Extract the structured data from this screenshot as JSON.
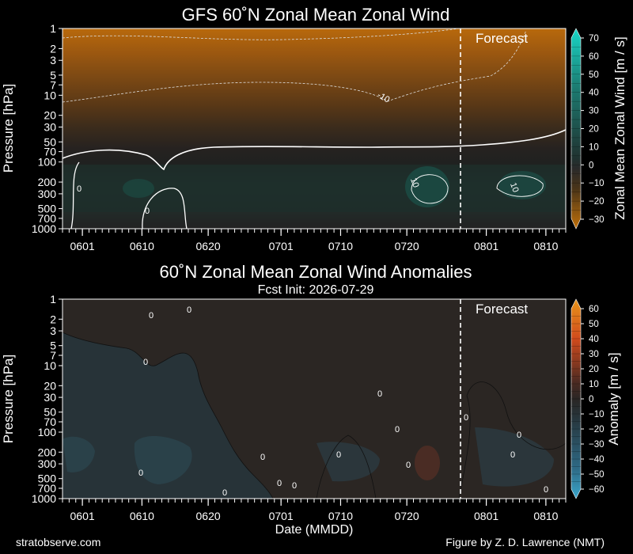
{
  "footer": {
    "left": "stratobserve.com",
    "right": "Figure by Z. D. Lawrence (NMT)"
  },
  "chart_data": [
    {
      "type": "heatmap",
      "title": "GFS 60˚N Zonal Mean Zonal Wind",
      "subtitle": "",
      "xlabel": "",
      "ylabel": "Pressure [hPa]",
      "x_ticks": [
        "0601",
        "0610",
        "0620",
        "0701",
        "0710",
        "0720",
        "0801",
        "0810"
      ],
      "x_range": [
        "0529",
        "0813"
      ],
      "y_ticks": [
        "1",
        "2",
        "3",
        "5",
        "7",
        "10",
        "20",
        "30",
        "50",
        "70",
        "100",
        "200",
        "300",
        "500",
        "700",
        "1000"
      ],
      "y_scale": "log",
      "ylim": [
        1000,
        1
      ],
      "forecast_label": "Forecast",
      "forecast_start": "0729",
      "colorbar": {
        "label": "Zonal Mean Zonal Wind [m / s]",
        "ticks": [
          70,
          60,
          50,
          40,
          30,
          20,
          10,
          0,
          -10,
          -20,
          -30
        ],
        "range": [
          -30,
          70
        ],
        "colors": {
          "neg_deep": "#b86a0c",
          "neg_light": "#5a3a14",
          "zero": "#202020",
          "pos_light": "#1e4a44",
          "pos_deep": "#18d6c6"
        }
      },
      "contour_labels": [
        "0",
        "0",
        "10",
        "10",
        "-10"
      ],
      "grid": false,
      "legend": "colorbar-right"
    },
    {
      "type": "heatmap",
      "title": "60˚N Zonal Mean Zonal Wind Anomalies",
      "subtitle": "Fcst Init: 2026-07-29",
      "xlabel": "Date (MMDD)",
      "ylabel": "Pressure [hPa]",
      "x_ticks": [
        "0601",
        "0610",
        "0620",
        "0701",
        "0710",
        "0720",
        "0801",
        "0810"
      ],
      "x_range": [
        "0529",
        "0813"
      ],
      "y_ticks": [
        "1",
        "2",
        "3",
        "5",
        "7",
        "10",
        "20",
        "30",
        "50",
        "70",
        "100",
        "200",
        "300",
        "500",
        "700",
        "1000"
      ],
      "y_scale": "log",
      "ylim": [
        1000,
        1
      ],
      "forecast_label": "Forecast",
      "forecast_start": "0729",
      "colorbar": {
        "label": "Anomaly [m / s]",
        "ticks": [
          60,
          50,
          40,
          30,
          20,
          10,
          0,
          -10,
          -20,
          -30,
          -40,
          -50,
          -60
        ],
        "range": [
          -60,
          60
        ],
        "colors": {
          "neg_deep": "#3aa7cc",
          "neg_light": "#27363d",
          "zero": "#2a2624",
          "pos_light": "#3a2a22",
          "pos_deep": "#e8951a"
        }
      },
      "contour_labels": [
        "0",
        "0",
        "0",
        "0",
        "0",
        "0",
        "0",
        "0",
        "0",
        "0",
        "0",
        "0",
        "0",
        "0",
        "0",
        "0"
      ],
      "grid": false,
      "legend": "colorbar-right"
    }
  ]
}
